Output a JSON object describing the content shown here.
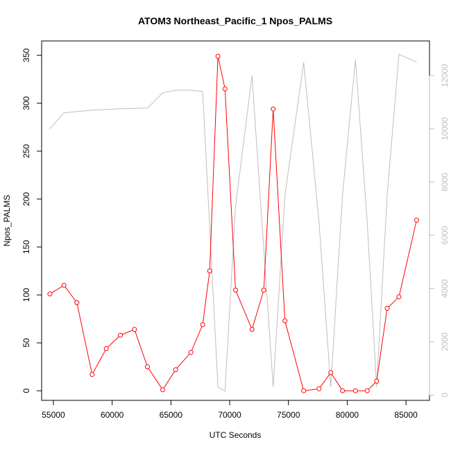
{
  "chart_data": {
    "type": "line",
    "title": "ATOM3 Northeast_Pacific_1 Npos_PALMS",
    "xlabel": "UTC Seconds",
    "ylabel": "Npos_PALMS",
    "y2label": "",
    "xlim": [
      54000,
      87000
    ],
    "ylim": [
      -10,
      365
    ],
    "y2lim": [
      -200,
      13300
    ],
    "x_ticks": [
      55000,
      60000,
      65000,
      70000,
      75000,
      80000,
      85000
    ],
    "y_ticks": [
      0,
      50,
      100,
      150,
      200,
      250,
      300,
      350
    ],
    "y2_ticks": [
      0,
      2000,
      4000,
      6000,
      8000,
      10000,
      12000
    ],
    "grid": false,
    "series": [
      {
        "axis": "left",
        "color": "#ff0000",
        "marker": "open-circle",
        "x": [
          54700,
          55900,
          57000,
          58300,
          59500,
          60700,
          61900,
          63000,
          64300,
          65400,
          66700,
          67700,
          68300,
          69000,
          69600,
          70500,
          71900,
          72900,
          73700,
          74700,
          76300,
          77600,
          78600,
          79600,
          80700,
          81700,
          82500,
          83400,
          84400,
          85900
        ],
        "y": [
          101,
          110,
          92,
          17,
          44,
          58,
          64,
          25,
          1,
          22,
          40,
          69,
          125,
          349,
          315,
          105,
          64,
          105,
          294,
          73,
          0,
          2,
          19,
          0,
          0,
          0,
          10,
          86,
          98,
          178
        ]
      },
      {
        "axis": "right",
        "color": "#bebebe",
        "marker": "none",
        "x": [
          54700,
          55900,
          58300,
          60700,
          63000,
          64300,
          65400,
          66700,
          67700,
          69000,
          69600,
          70500,
          71900,
          73700,
          74700,
          76300,
          77600,
          78600,
          79600,
          80700,
          81700,
          82500,
          83400,
          84400,
          85900
        ],
        "y": [
          10000,
          10600,
          10700,
          10750,
          10780,
          11350,
          11450,
          11450,
          11400,
          300,
          150,
          7100,
          12000,
          300,
          7500,
          12500,
          6500,
          300,
          7500,
          12600,
          6500,
          300,
          7500,
          12800,
          12500
        ]
      }
    ]
  }
}
